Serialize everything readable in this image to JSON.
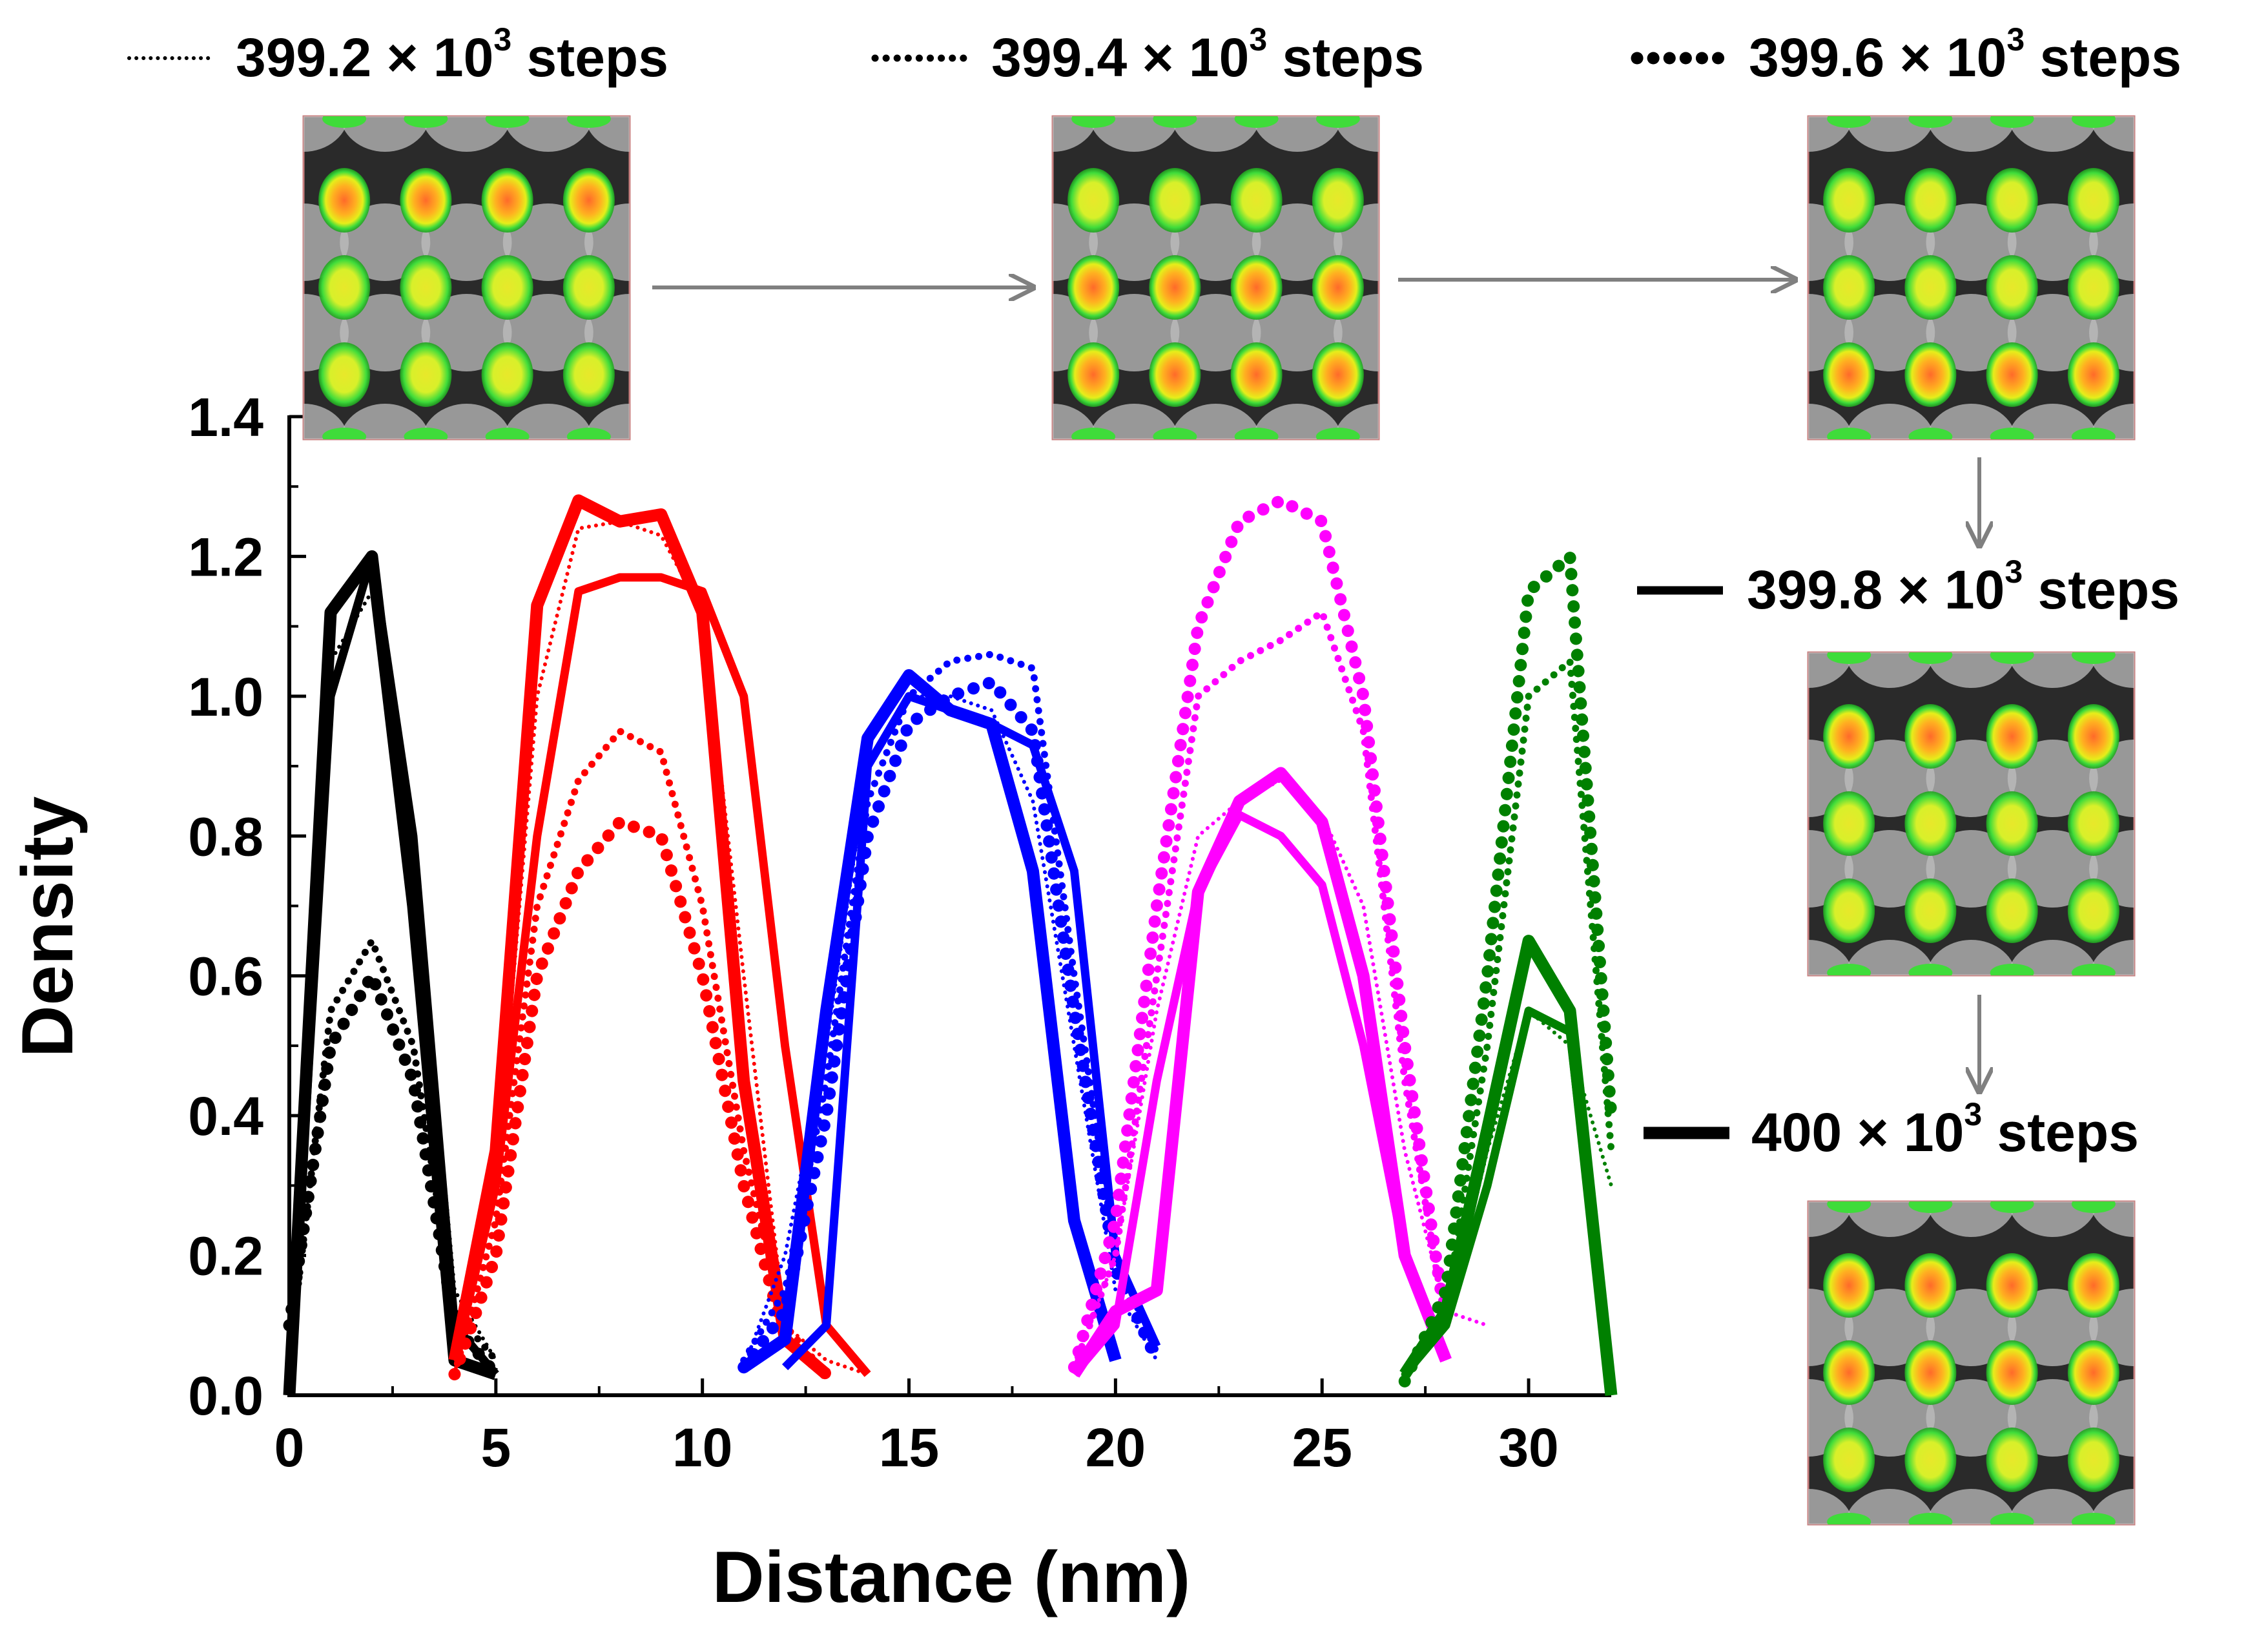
{
  "chart_data": {
    "type": "line",
    "title": "",
    "xlabel": "Distance (nm)",
    "ylabel": "Density",
    "xlim": [
      0,
      32
    ],
    "ylim": [
      0,
      1.4
    ],
    "xticks": [
      0,
      5,
      10,
      15,
      20,
      25,
      30
    ],
    "yticks": [
      0.0,
      0.2,
      0.4,
      0.6,
      0.8,
      1.0,
      1.2,
      1.4
    ],
    "xtick_labels": [
      "0",
      "5",
      "10",
      "15",
      "20",
      "25",
      "30"
    ],
    "ytick_labels": [
      "0.0",
      "0.2",
      "0.4",
      "0.6",
      "0.8",
      "1.0",
      "1.2",
      "1.4"
    ],
    "grid": false,
    "legend": [
      {
        "name": "399.2 × 10³ steps",
        "prefix": "399.2 × 10",
        "exp": "3",
        "suffix": " steps",
        "style": "dotted-thin"
      },
      {
        "name": "399.4 × 10³ steps",
        "prefix": "399.4 × 10",
        "exp": "3",
        "suffix": " steps",
        "style": "dotted-medium"
      },
      {
        "name": "399.6 × 10³ steps",
        "prefix": "399.6 × 10",
        "exp": "3",
        "suffix": " steps",
        "style": "dotted-thick"
      },
      {
        "name": "399.8 × 10³ steps",
        "prefix": "399.8 × 10",
        "exp": "3",
        "suffix": " steps",
        "style": "solid-medium"
      },
      {
        "name": "400 × 10³ steps",
        "prefix": "400 × 10",
        "exp": "3",
        "suffix": " steps",
        "style": "solid-thick"
      }
    ],
    "groups": [
      {
        "color": "#000000",
        "series": [
          {
            "step": "399.2 × 10³",
            "style": "dotted-thin",
            "x": [
              0,
              1,
              2,
              3,
              4,
              5
            ],
            "y": [
              0.05,
              1.05,
              1.15,
              0.8,
              0.15,
              0.05
            ]
          },
          {
            "step": "399.4 × 10³",
            "style": "dotted-medium",
            "x": [
              0,
              1,
              2,
              3,
              4,
              5
            ],
            "y": [
              0.05,
              0.55,
              0.65,
              0.5,
              0.12,
              0.05
            ]
          },
          {
            "step": "399.6 × 10³",
            "style": "dotted-thick",
            "x": [
              0,
              1,
              2,
              3,
              4,
              5
            ],
            "y": [
              0.1,
              0.5,
              0.6,
              0.45,
              0.1,
              0.03
            ]
          },
          {
            "step": "399.8 × 10³",
            "style": "solid-medium",
            "x": [
              0,
              1,
              2,
              3,
              4,
              5
            ],
            "y": [
              0.0,
              1.0,
              1.2,
              0.8,
              0.1,
              0.03
            ]
          },
          {
            "step": "400 × 10³",
            "style": "solid-thick",
            "x": [
              0,
              1,
              2,
              3,
              4,
              5
            ],
            "y": [
              0.0,
              1.12,
              1.2,
              0.7,
              0.05,
              0.03
            ]
          }
        ]
      },
      {
        "color": "#ff0000",
        "series": [
          {
            "step": "399.2 × 10³",
            "style": "dotted-thin",
            "x": [
              4,
              5,
              6,
              7,
              8,
              9,
              10,
              11,
              12,
              13,
              14
            ],
            "y": [
              0.03,
              0.3,
              1.0,
              1.24,
              1.25,
              1.23,
              1.12,
              0.6,
              0.1,
              0.05,
              0.03
            ]
          },
          {
            "step": "399.4 × 10³",
            "style": "dotted-medium",
            "x": [
              4,
              5,
              6,
              7,
              8,
              9,
              10,
              11,
              12,
              13
            ],
            "y": [
              0.03,
              0.25,
              0.7,
              0.88,
              0.95,
              0.92,
              0.7,
              0.35,
              0.1,
              0.03
            ]
          },
          {
            "step": "399.6 × 10³",
            "style": "dotted-thick",
            "x": [
              4,
              5,
              6,
              7,
              8,
              9,
              10,
              11,
              12,
              13
            ],
            "y": [
              0.03,
              0.2,
              0.6,
              0.75,
              0.82,
              0.8,
              0.6,
              0.3,
              0.08,
              0.03
            ]
          },
          {
            "step": "399.8 × 10³",
            "style": "solid-medium",
            "x": [
              4,
              5,
              6,
              7,
              8,
              9,
              10,
              11,
              12,
              13,
              14
            ],
            "y": [
              0.05,
              0.3,
              0.8,
              1.15,
              1.17,
              1.17,
              1.15,
              1.0,
              0.5,
              0.1,
              0.03
            ]
          },
          {
            "step": "400 × 10³",
            "style": "solid-thick",
            "x": [
              4,
              5,
              6,
              7,
              8,
              9,
              10,
              11,
              12,
              13
            ],
            "y": [
              0.05,
              0.35,
              1.13,
              1.28,
              1.25,
              1.26,
              1.12,
              0.45,
              0.08,
              0.03
            ]
          }
        ]
      },
      {
        "color": "#0000ff",
        "series": [
          {
            "step": "399.2 × 10³",
            "style": "dotted-thin",
            "x": [
              11,
              12,
              13,
              14,
              15,
              16,
              17,
              18,
              19,
              20,
              21
            ],
            "y": [
              0.04,
              0.2,
              0.5,
              0.9,
              1.0,
              1.0,
              0.98,
              0.85,
              0.5,
              0.15,
              0.05
            ]
          },
          {
            "step": "399.4 × 10³",
            "style": "dotted-medium",
            "x": [
              11,
              12,
              13,
              14,
              15,
              16,
              17,
              18,
              19,
              20,
              21
            ],
            "y": [
              0.05,
              0.15,
              0.45,
              0.85,
              1.0,
              1.05,
              1.06,
              1.04,
              0.6,
              0.2,
              0.06
            ]
          },
          {
            "step": "399.6 × 10³",
            "style": "dotted-thick",
            "x": [
              11,
              12,
              13,
              14,
              15,
              16,
              17,
              18,
              19,
              20,
              21
            ],
            "y": [
              0.04,
              0.12,
              0.4,
              0.8,
              0.96,
              1.0,
              1.02,
              0.95,
              0.55,
              0.18,
              0.05
            ]
          },
          {
            "step": "399.8 × 10³",
            "style": "solid-medium",
            "x": [
              12,
              13,
              14,
              15,
              16,
              17,
              18,
              19,
              20,
              21
            ],
            "y": [
              0.04,
              0.1,
              0.9,
              1.0,
              0.98,
              0.96,
              0.93,
              0.75,
              0.2,
              0.07
            ]
          },
          {
            "step": "400 × 10³",
            "style": "solid-thick",
            "x": [
              11,
              12,
              13,
              14,
              15,
              16,
              17,
              18,
              19,
              20
            ],
            "y": [
              0.04,
              0.08,
              0.55,
              0.94,
              1.03,
              0.98,
              0.96,
              0.75,
              0.25,
              0.05
            ]
          }
        ]
      },
      {
        "color": "#ff00ff",
        "series": [
          {
            "step": "399.2 × 10³",
            "style": "dotted-thin",
            "x": [
              19,
              20,
              21,
              22,
              23,
              24,
              25,
              26,
              27,
              28,
              29
            ],
            "y": [
              0.04,
              0.2,
              0.55,
              0.8,
              0.85,
              0.88,
              0.83,
              0.7,
              0.35,
              0.12,
              0.1
            ]
          },
          {
            "step": "399.4 × 10³",
            "style": "dotted-medium",
            "x": [
              19,
              20,
              21,
              22,
              23,
              24,
              25,
              26,
              27,
              28
            ],
            "y": [
              0.04,
              0.2,
              0.6,
              1.0,
              1.05,
              1.08,
              1.12,
              0.95,
              0.45,
              0.1
            ]
          },
          {
            "step": "399.6 × 10³",
            "style": "dotted-thick",
            "x": [
              19,
              20,
              21,
              22,
              23,
              24,
              25,
              26,
              27,
              28
            ],
            "y": [
              0.04,
              0.25,
              0.7,
              1.1,
              1.25,
              1.28,
              1.25,
              1.0,
              0.5,
              0.1
            ]
          },
          {
            "step": "399.8 × 10³",
            "style": "solid-medium",
            "x": [
              19,
              20,
              21,
              22,
              23,
              24,
              25,
              26,
              27,
              28
            ],
            "y": [
              0.03,
              0.1,
              0.45,
              0.72,
              0.83,
              0.8,
              0.73,
              0.5,
              0.2,
              0.05
            ]
          },
          {
            "step": "400 × 10³",
            "style": "solid-thick",
            "x": [
              19,
              20,
              21,
              22,
              23,
              24,
              25,
              26,
              27,
              28
            ],
            "y": [
              0.03,
              0.12,
              0.15,
              0.72,
              0.85,
              0.89,
              0.82,
              0.6,
              0.2,
              0.05
            ]
          }
        ]
      },
      {
        "color": "#008000",
        "series": [
          {
            "step": "399.2 × 10³",
            "style": "dotted-thin",
            "x": [
              27,
              28,
              29,
              30,
              31,
              32
            ],
            "y": [
              0.03,
              0.1,
              0.35,
              0.55,
              0.5,
              0.3
            ]
          },
          {
            "step": "399.4 × 10³",
            "style": "dotted-medium",
            "x": [
              27,
              28,
              29,
              30,
              31,
              32
            ],
            "y": [
              0.03,
              0.12,
              0.5,
              1.0,
              1.05,
              0.35
            ]
          },
          {
            "step": "399.6 × 10³",
            "style": "dotted-thick",
            "x": [
              27,
              28,
              29,
              30,
              31,
              32
            ],
            "y": [
              0.02,
              0.15,
              0.6,
              1.15,
              1.2,
              0.4
            ]
          },
          {
            "step": "399.8 × 10³",
            "style": "solid-medium",
            "x": [
              27,
              28,
              29,
              30,
              31,
              32
            ],
            "y": [
              0.03,
              0.1,
              0.3,
              0.55,
              0.52,
              0.0
            ]
          },
          {
            "step": "400 × 10³",
            "style": "solid-thick",
            "x": [
              27,
              28,
              29,
              30,
              31,
              32
            ],
            "y": [
              0.03,
              0.12,
              0.38,
              0.65,
              0.55,
              0.0
            ]
          }
        ]
      }
    ],
    "inset_images": [
      {
        "label": "399.2 × 10³ steps",
        "row_values": [
          0.9,
          0.7,
          0.55
        ]
      },
      {
        "label": "399.4 × 10³ steps",
        "row_values": [
          0.7,
          0.85,
          0.8
        ]
      },
      {
        "label": "399.6 × 10³ steps",
        "row_values": [
          0.55,
          0.7,
          0.95
        ]
      },
      {
        "label": "399.8 × 10³ steps",
        "row_values": [
          0.9,
          0.75,
          0.55
        ]
      },
      {
        "label": "400 × 10³ steps",
        "row_values": [
          0.95,
          0.8,
          0.55
        ]
      }
    ]
  }
}
